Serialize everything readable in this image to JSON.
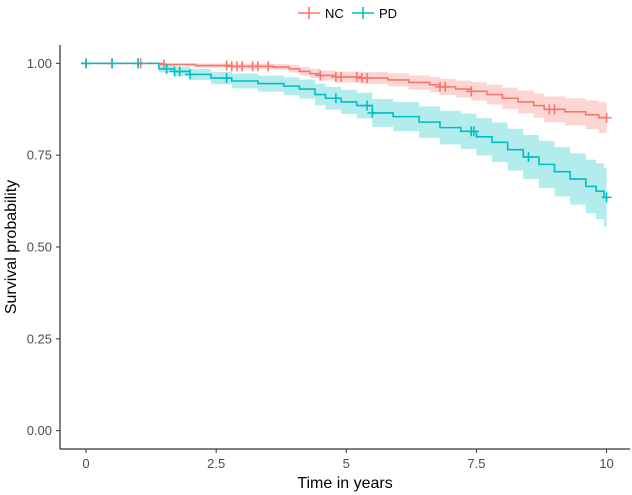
{
  "chart_data": {
    "type": "line",
    "title": "",
    "xlabel": "Time in years",
    "ylabel": "Survival probability",
    "xlim": [
      -0.5,
      10.45
    ],
    "ylim": [
      -0.05,
      1.05
    ],
    "x_ticks": [
      0,
      2.5,
      5,
      7.5,
      10
    ],
    "x_tick_labels": [
      "0",
      "2.5",
      "5",
      "7.5",
      "10"
    ],
    "y_ticks": [
      0,
      0.25,
      0.5,
      0.75,
      1.0
    ],
    "y_tick_labels": [
      "0.00",
      "0.25",
      "0.50",
      "0.75",
      "1.00"
    ],
    "grid": false,
    "legend": {
      "position": "top",
      "entries": [
        "NC",
        "PD"
      ]
    },
    "series": [
      {
        "name": "NC",
        "color": "#F8766D",
        "steps": [
          [
            0,
            1.0
          ],
          [
            1.5,
            0.997
          ],
          [
            2.1,
            0.994
          ],
          [
            2.8,
            0.992
          ],
          [
            3.6,
            0.99
          ],
          [
            3.9,
            0.985
          ],
          [
            4.1,
            0.978
          ],
          [
            4.3,
            0.972
          ],
          [
            4.5,
            0.967
          ],
          [
            4.8,
            0.963
          ],
          [
            5.3,
            0.96
          ],
          [
            5.8,
            0.955
          ],
          [
            6.2,
            0.948
          ],
          [
            6.6,
            0.942
          ],
          [
            6.8,
            0.936
          ],
          [
            7.1,
            0.93
          ],
          [
            7.4,
            0.924
          ],
          [
            7.7,
            0.915
          ],
          [
            8.0,
            0.905
          ],
          [
            8.3,
            0.895
          ],
          [
            8.6,
            0.885
          ],
          [
            8.8,
            0.875
          ],
          [
            9.2,
            0.868
          ],
          [
            9.6,
            0.86
          ],
          [
            9.85,
            0.852
          ]
        ],
        "end_x": 10,
        "lower": [
          0.999,
          0.993,
          0.988,
          0.985,
          0.982,
          0.975,
          0.967,
          0.96,
          0.953,
          0.948,
          0.944,
          0.937,
          0.929,
          0.921,
          0.914,
          0.907,
          0.899,
          0.888,
          0.876,
          0.864,
          0.852,
          0.84,
          0.831,
          0.821,
          0.81
        ],
        "upper": [
          1.0,
          1.0,
          1.0,
          0.999,
          0.998,
          0.995,
          0.99,
          0.985,
          0.981,
          0.978,
          0.976,
          0.973,
          0.967,
          0.963,
          0.958,
          0.953,
          0.949,
          0.942,
          0.934,
          0.926,
          0.918,
          0.91,
          0.905,
          0.899,
          0.894
        ],
        "censor_x": [
          0,
          0.5,
          1.0,
          1.05,
          1.5,
          2.7,
          2.8,
          2.9,
          3.0,
          3.2,
          3.3,
          3.5,
          4.5,
          4.8,
          4.9,
          5.2,
          5.3,
          5.4,
          6.8,
          6.9,
          7.4,
          8.9,
          9.0,
          10.0
        ]
      },
      {
        "name": "PD",
        "color": "#00BFC4",
        "steps": [
          [
            0,
            1.0
          ],
          [
            1.4,
            0.985
          ],
          [
            1.7,
            0.978
          ],
          [
            2.0,
            0.97
          ],
          [
            2.4,
            0.96
          ],
          [
            2.8,
            0.952
          ],
          [
            3.3,
            0.945
          ],
          [
            3.8,
            0.938
          ],
          [
            4.1,
            0.93
          ],
          [
            4.4,
            0.915
          ],
          [
            4.6,
            0.905
          ],
          [
            4.9,
            0.895
          ],
          [
            5.2,
            0.885
          ],
          [
            5.5,
            0.865
          ],
          [
            5.9,
            0.855
          ],
          [
            6.4,
            0.84
          ],
          [
            6.8,
            0.825
          ],
          [
            7.2,
            0.815
          ],
          [
            7.5,
            0.8
          ],
          [
            7.8,
            0.785
          ],
          [
            8.1,
            0.765
          ],
          [
            8.4,
            0.745
          ],
          [
            8.7,
            0.725
          ],
          [
            9.0,
            0.705
          ],
          [
            9.3,
            0.685
          ],
          [
            9.6,
            0.665
          ],
          [
            9.8,
            0.652
          ],
          [
            9.95,
            0.635
          ]
        ],
        "end_x": 10,
        "lower": [
          0.999,
          0.975,
          0.965,
          0.955,
          0.943,
          0.932,
          0.923,
          0.914,
          0.904,
          0.886,
          0.874,
          0.862,
          0.85,
          0.827,
          0.815,
          0.797,
          0.779,
          0.767,
          0.749,
          0.731,
          0.708,
          0.685,
          0.661,
          0.638,
          0.615,
          0.592,
          0.576,
          0.555
        ],
        "upper": [
          1.0,
          0.995,
          0.991,
          0.985,
          0.977,
          0.972,
          0.967,
          0.962,
          0.956,
          0.944,
          0.936,
          0.928,
          0.92,
          0.903,
          0.895,
          0.883,
          0.871,
          0.863,
          0.851,
          0.839,
          0.822,
          0.805,
          0.789,
          0.772,
          0.755,
          0.738,
          0.728,
          0.715
        ],
        "censor_x": [
          0,
          0.5,
          1.0,
          1.55,
          1.7,
          1.8,
          2.0,
          2.7,
          4.8,
          5.4,
          5.5,
          7.4,
          7.45,
          8.5,
          10.0
        ]
      }
    ]
  }
}
